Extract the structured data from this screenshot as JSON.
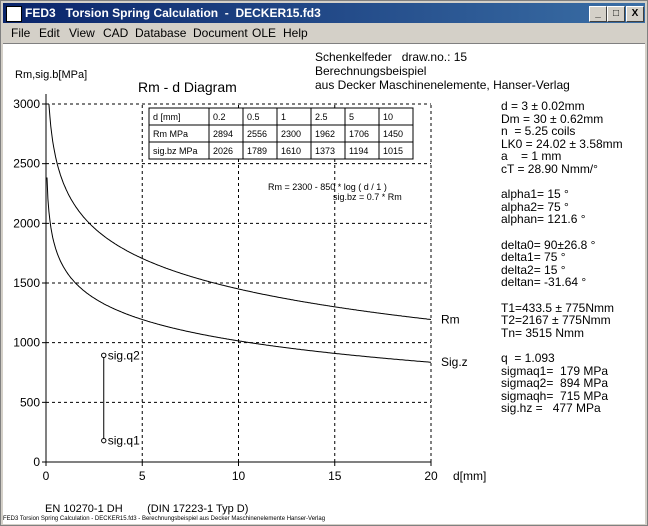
{
  "window": {
    "app_name": "FED3",
    "title": "FED3   Torsion Spring Calculation  -  DECKER15.fd3",
    "minimize": "_",
    "maximize": "□",
    "close": "X"
  },
  "menu": [
    "File",
    "Edit",
    "View",
    "CAD",
    "Database",
    "Document",
    "OLE",
    "Help"
  ],
  "header_info": {
    "line1": "Schenkelfeder   draw.no.: 15",
    "line2": "Berechnungsbeispiel",
    "line3": "aus Decker Maschinenelemente, Hanser-Verlag"
  },
  "results": [
    "d = 3 ± 0.02mm",
    "Dm = 30 ± 0.62mm",
    "n  = 5.25 coils",
    "LK0 = 24.02 ± 3.58mm",
    "a    = 1 mm",
    "cT = 28.90 Nmm/°",
    "",
    "alpha1= 15 °",
    "alpha2= 75 °",
    "alphan= 121.6 °",
    "",
    "delta0= 90±26.8 °",
    "delta1= 75 °",
    "delta2= 15 °",
    "deltan= -31.64 °",
    "",
    "T1=433.5 ± 775Nmm",
    "T2=2167 ± 775Nmm",
    "Tn= 3515 Nmm",
    "",
    "q  = 1.093",
    "sigmaq1=  179 MPa",
    "sigmaq2=  894 MPa",
    "sigmaqh=  715 MPa",
    "sig.hz =   477 MPa"
  ],
  "footer": {
    "material": "EN 10270-1 DH        (DIN 17223-1 Typ D)",
    "status_line": "FED3 Torsion Spring Calculation - DECKER15.fd3 - Berechnungsbeispiel aus Decker Maschinenelemente Hanser-Verlag"
  },
  "chart_data": {
    "type": "line",
    "title": "Rm - d  Diagram",
    "ylabel": "Rm,sig.b[MPa]",
    "xlabel": "d[mm]",
    "xlim": [
      0,
      20
    ],
    "ylim": [
      0,
      3000
    ],
    "xticks": [
      0,
      5,
      10,
      15,
      20
    ],
    "yticks": [
      0,
      500,
      1000,
      1500,
      2000,
      2500,
      3000
    ],
    "grid": true,
    "formula_rm": "Rm = 2300 - 850 * log ( d / 1 )",
    "formula_sig": "sig.bz = 0.7 * Rm",
    "series": [
      {
        "name": "Rm",
        "x": [
          0.5,
          1,
          2,
          3,
          5,
          10,
          15,
          20
        ],
        "values": [
          2556,
          2300,
          2044,
          1894,
          1706,
          1450,
          1300,
          1194
        ]
      },
      {
        "name": "Sig.z",
        "x": [
          0.5,
          1,
          2,
          3,
          5,
          10,
          15,
          20
        ],
        "values": [
          1789,
          1610,
          1431,
          1326,
          1194,
          1015,
          910,
          836
        ]
      }
    ],
    "marker": {
      "x": 3,
      "q1": 179,
      "q2": 894,
      "q1_label": "sig.q1",
      "q2_label": "sig.q2"
    },
    "table": {
      "headers": [
        "d [mm]",
        "0.2",
        "0.5",
        "1",
        "2.5",
        "5",
        "10"
      ],
      "rows": [
        [
          "Rm MPa",
          "2894",
          "2556",
          "2300",
          "1962",
          "1706",
          "1450"
        ],
        [
          "sig.bz MPa",
          "2026",
          "1789",
          "1610",
          "1373",
          "1194",
          "1015"
        ]
      ]
    }
  }
}
